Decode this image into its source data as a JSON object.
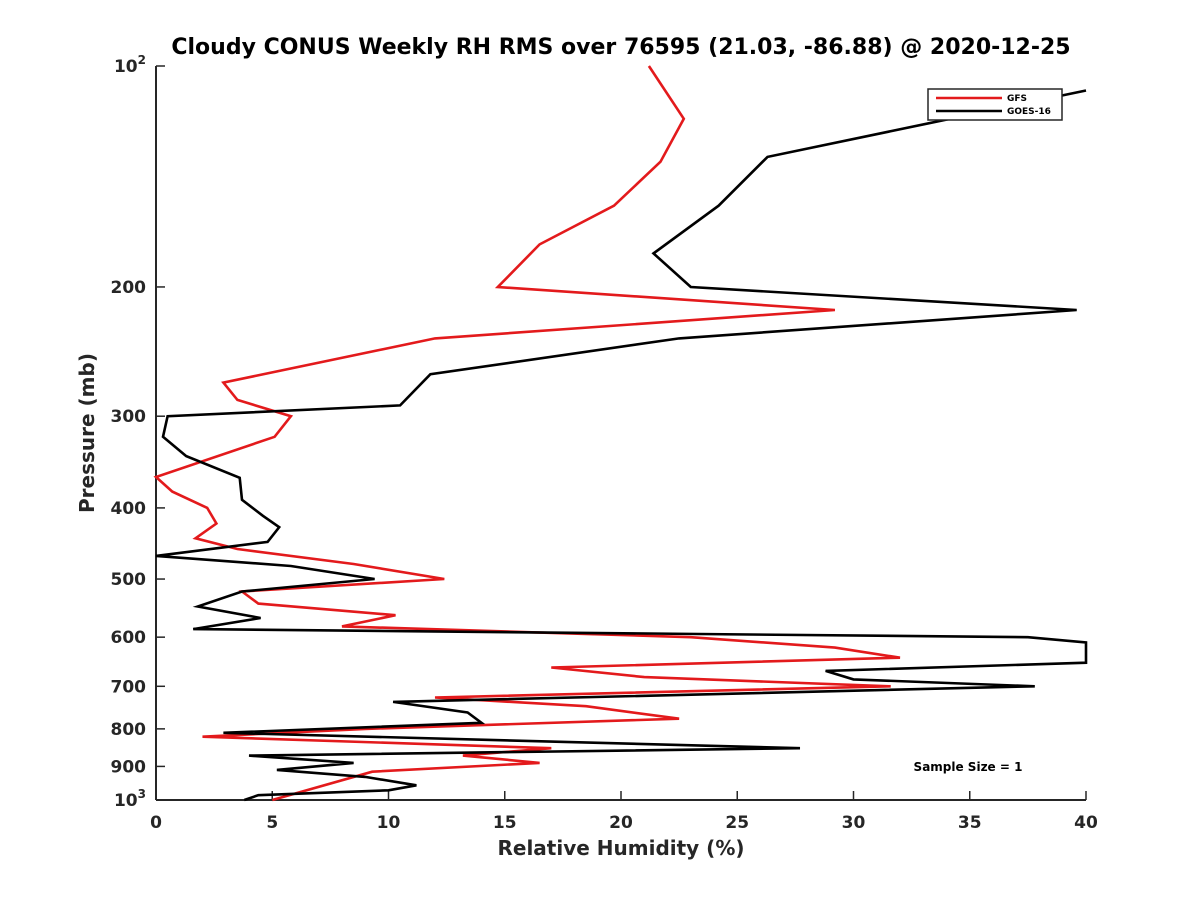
{
  "chart_data": {
    "type": "line",
    "title": "Cloudy CONUS Weekly RH RMS over 76595 (21.03, -86.88) @ 2020-12-25",
    "xlabel": "Relative Humidity (%)",
    "ylabel": "Pressure (mb)",
    "xlim": [
      0,
      40
    ],
    "ylim": [
      100,
      1000
    ],
    "yscale": "log",
    "yreversed": true,
    "grid": false,
    "legend_position": "top-right",
    "x_ticks": [
      {
        "value": 0,
        "label": "0"
      },
      {
        "value": 5,
        "label": "5"
      },
      {
        "value": 10,
        "label": "10"
      },
      {
        "value": 15,
        "label": "15"
      },
      {
        "value": 20,
        "label": "20"
      },
      {
        "value": 25,
        "label": "25"
      },
      {
        "value": 30,
        "label": "30"
      },
      {
        "value": 35,
        "label": "35"
      },
      {
        "value": 40,
        "label": "40"
      }
    ],
    "y_ticks": [
      {
        "value": 100,
        "label": "10",
        "sup": "2"
      },
      {
        "value": 200,
        "label": "200"
      },
      {
        "value": 300,
        "label": "300"
      },
      {
        "value": 400,
        "label": "400"
      },
      {
        "value": 500,
        "label": "500"
      },
      {
        "value": 600,
        "label": "600"
      },
      {
        "value": 700,
        "label": "700"
      },
      {
        "value": 800,
        "label": "800"
      },
      {
        "value": 900,
        "label": "900"
      },
      {
        "value": 1000,
        "label": "10",
        "sup": "3"
      }
    ],
    "series": [
      {
        "name": "GFS",
        "color": "#e31a1c",
        "points": [
          {
            "rh": 21.2,
            "p": 100
          },
          {
            "rh": 22.7,
            "p": 118
          },
          {
            "rh": 21.7,
            "p": 135
          },
          {
            "rh": 19.7,
            "p": 155
          },
          {
            "rh": 16.5,
            "p": 175
          },
          {
            "rh": 14.7,
            "p": 200
          },
          {
            "rh": 29.2,
            "p": 215
          },
          {
            "rh": 12.0,
            "p": 235
          },
          {
            "rh": 2.9,
            "p": 270
          },
          {
            "rh": 3.5,
            "p": 285
          },
          {
            "rh": 5.8,
            "p": 300
          },
          {
            "rh": 5.1,
            "p": 320
          },
          {
            "rh": 0.0,
            "p": 363
          },
          {
            "rh": 0.7,
            "p": 380
          },
          {
            "rh": 2.2,
            "p": 400
          },
          {
            "rh": 2.6,
            "p": 420
          },
          {
            "rh": 1.7,
            "p": 440
          },
          {
            "rh": 3.5,
            "p": 455
          },
          {
            "rh": 8.5,
            "p": 477
          },
          {
            "rh": 12.4,
            "p": 500
          },
          {
            "rh": 3.7,
            "p": 520
          },
          {
            "rh": 4.4,
            "p": 540
          },
          {
            "rh": 10.3,
            "p": 560
          },
          {
            "rh": 8.0,
            "p": 580
          },
          {
            "rh": 23.0,
            "p": 600
          },
          {
            "rh": 29.2,
            "p": 620
          },
          {
            "rh": 32.0,
            "p": 640
          },
          {
            "rh": 17.0,
            "p": 660
          },
          {
            "rh": 21.0,
            "p": 680
          },
          {
            "rh": 31.6,
            "p": 700
          },
          {
            "rh": 12.0,
            "p": 725
          },
          {
            "rh": 18.5,
            "p": 745
          },
          {
            "rh": 22.5,
            "p": 775
          },
          {
            "rh": 9.0,
            "p": 800
          },
          {
            "rh": 2.0,
            "p": 820
          },
          {
            "rh": 17.0,
            "p": 850
          },
          {
            "rh": 13.2,
            "p": 870
          },
          {
            "rh": 16.5,
            "p": 890
          },
          {
            "rh": 9.3,
            "p": 915
          },
          {
            "rh": 5.0,
            "p": 1000
          }
        ]
      },
      {
        "name": "GOES-16",
        "color": "#000000",
        "points": [
          {
            "rh": 40.0,
            "p": 108
          },
          {
            "rh": 26.3,
            "p": 133
          },
          {
            "rh": 24.2,
            "p": 155
          },
          {
            "rh": 21.4,
            "p": 180
          },
          {
            "rh": 23.0,
            "p": 200
          },
          {
            "rh": 39.6,
            "p": 215
          },
          {
            "rh": 22.5,
            "p": 235
          },
          {
            "rh": 11.8,
            "p": 263
          },
          {
            "rh": 10.5,
            "p": 290
          },
          {
            "rh": 0.5,
            "p": 300
          },
          {
            "rh": 0.3,
            "p": 320
          },
          {
            "rh": 1.3,
            "p": 340
          },
          {
            "rh": 3.6,
            "p": 364
          },
          {
            "rh": 3.7,
            "p": 390
          },
          {
            "rh": 4.6,
            "p": 410
          },
          {
            "rh": 5.3,
            "p": 425
          },
          {
            "rh": 4.8,
            "p": 445
          },
          {
            "rh": 0.0,
            "p": 465
          },
          {
            "rh": 5.8,
            "p": 480
          },
          {
            "rh": 9.4,
            "p": 500
          },
          {
            "rh": 3.7,
            "p": 520
          },
          {
            "rh": 1.8,
            "p": 545
          },
          {
            "rh": 4.5,
            "p": 565
          },
          {
            "rh": 1.6,
            "p": 585
          },
          {
            "rh": 37.5,
            "p": 600
          },
          {
            "rh": 40.0,
            "p": 610
          },
          {
            "rh": 40.0,
            "p": 650
          },
          {
            "rh": 28.8,
            "p": 667
          },
          {
            "rh": 30.0,
            "p": 685
          },
          {
            "rh": 37.8,
            "p": 700
          },
          {
            "rh": 10.2,
            "p": 735
          },
          {
            "rh": 13.4,
            "p": 760
          },
          {
            "rh": 14.0,
            "p": 785
          },
          {
            "rh": 2.9,
            "p": 810
          },
          {
            "rh": 27.7,
            "p": 850
          },
          {
            "rh": 4.0,
            "p": 870
          },
          {
            "rh": 8.5,
            "p": 890
          },
          {
            "rh": 5.2,
            "p": 910
          },
          {
            "rh": 9.0,
            "p": 930
          },
          {
            "rh": 11.2,
            "p": 955
          },
          {
            "rh": 10.0,
            "p": 970
          },
          {
            "rh": 4.4,
            "p": 985
          },
          {
            "rh": 3.8,
            "p": 1000
          }
        ]
      }
    ],
    "annotations": [
      "Sample Size = 1"
    ]
  }
}
